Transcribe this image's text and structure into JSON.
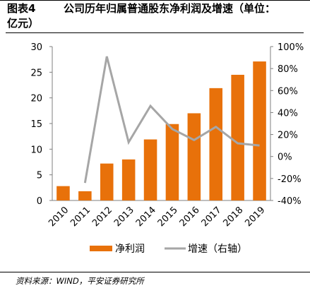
{
  "figure": {
    "number": "图表4",
    "title_line1": "公司历年归属普通股东净利润及增速（单位：",
    "title_line2": "亿元）",
    "source": "资料来源：WIND，平安证券研究所"
  },
  "colors": {
    "bar": "#e8710a",
    "line": "#a6a6a6",
    "axis": "#7f7f7f",
    "text": "#000000"
  },
  "chart_data": {
    "type": "bar",
    "categories": [
      "2010",
      "2011",
      "2012",
      "2013",
      "2014",
      "2015",
      "2016",
      "2017",
      "2018",
      "2019"
    ],
    "series": [
      {
        "name": "净利润",
        "type": "bar",
        "axis": "left",
        "values": [
          2.8,
          1.8,
          7.2,
          8.0,
          11.9,
          14.9,
          17.0,
          21.9,
          24.5,
          27.1
        ]
      },
      {
        "name": "增速（右轴）",
        "type": "line",
        "axis": "right",
        "values": [
          null,
          -24,
          91,
          13,
          46,
          25,
          15,
          27,
          12,
          10
        ]
      }
    ],
    "y_left": {
      "ylim": [
        0,
        30
      ],
      "ticks": [
        0,
        5,
        10,
        15,
        20,
        25,
        30
      ]
    },
    "y_right": {
      "ylim": [
        -40,
        100
      ],
      "ticks": [
        "-40%",
        "-20%",
        "0%",
        "20%",
        "40%",
        "60%",
        "80%",
        "100%"
      ]
    },
    "legend": {
      "position": "bottom-center"
    },
    "grid": false
  }
}
